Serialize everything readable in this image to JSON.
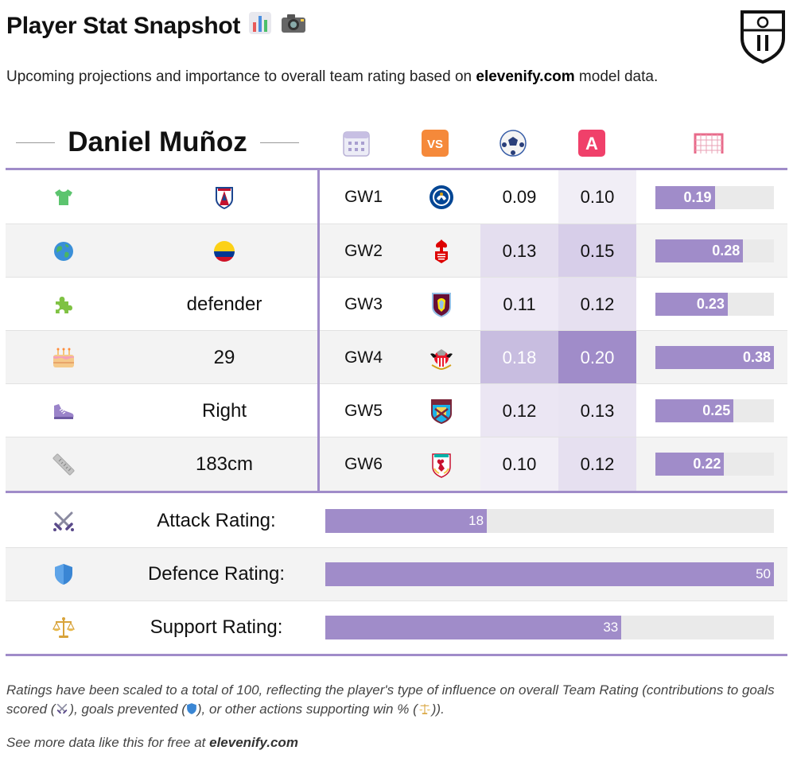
{
  "header": {
    "title": "Player Stat Snapshot",
    "subtitle_pre": "Upcoming projections and importance to overall team rating based on ",
    "subtitle_brand": "elevenify.com",
    "subtitle_post": " model data."
  },
  "player": {
    "name": "Daniel Muñoz"
  },
  "columns": {
    "icons": [
      "calendar-icon",
      "vs-icon",
      "football-icon",
      "assist-icon",
      "goal-net-icon"
    ]
  },
  "rows": [
    {
      "icon": "shirt-icon",
      "info": "",
      "info_icon": "crystal-palace-crest-icon",
      "gw": "GW1",
      "opponent": "chelsea-crest-icon",
      "goals": "0.09",
      "assists": "0.10",
      "total": "0.19",
      "total_pct": 48
    },
    {
      "icon": "globe-icon",
      "info": "",
      "info_icon": "colombia-flag-icon",
      "gw": "GW2",
      "opponent": "nottingham-forest-crest-icon",
      "goals": "0.13",
      "assists": "0.15",
      "total": "0.28",
      "total_pct": 74
    },
    {
      "icon": "puzzle-icon",
      "info": "defender",
      "info_icon": "",
      "gw": "GW3",
      "opponent": "aston-villa-crest-icon",
      "goals": "0.11",
      "assists": "0.12",
      "total": "0.23",
      "total_pct": 60
    },
    {
      "icon": "cake-icon",
      "info": "29",
      "info_icon": "",
      "gw": "GW4",
      "opponent": "sunderland-crest-icon",
      "goals": "0.18",
      "assists": "0.20",
      "total": "0.38",
      "total_pct": 100
    },
    {
      "icon": "boot-icon",
      "info": "Right",
      "info_icon": "",
      "gw": "GW5",
      "opponent": "west-ham-crest-icon",
      "goals": "0.12",
      "assists": "0.13",
      "total": "0.25",
      "total_pct": 66
    },
    {
      "icon": "ruler-icon",
      "info": "183cm",
      "info_icon": "",
      "gw": "GW6",
      "opponent": "liverpool-crest-icon",
      "goals": "0.10",
      "assists": "0.12",
      "total": "0.22",
      "total_pct": 58
    }
  ],
  "ratings": [
    {
      "icon": "swords-icon",
      "label": "Attack Rating:",
      "value": "18",
      "pct": 36
    },
    {
      "icon": "shield-icon",
      "label": "Defence Rating:",
      "value": "50",
      "pct": 100
    },
    {
      "icon": "scales-icon",
      "label": "Support Rating:",
      "value": "33",
      "pct": 66
    }
  ],
  "footer": {
    "note_a": "Ratings have been scaled to a total of 100, reflecting the player's type of influence on overall Team Rating (contributions to goals scored (",
    "note_b": "), goals prevented (",
    "note_c": "), or other actions supporting win % (",
    "note_d": ")).",
    "more_pre": "See more data like this for free at ",
    "more_brand": "elevenify.com"
  },
  "colors": {
    "accent": "#a08cc9",
    "heat_low": "#ede8f5",
    "heat_mid": "#ddd4ec",
    "heat_high": "#a08cc9"
  }
}
